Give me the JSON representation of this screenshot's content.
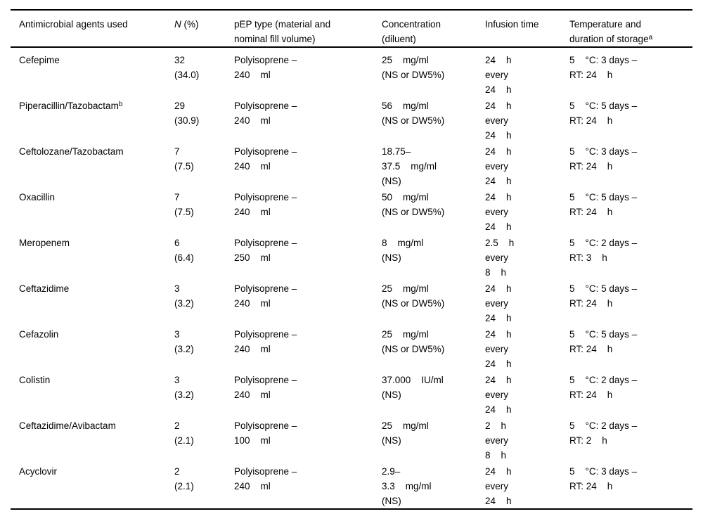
{
  "table": {
    "headers": {
      "agents": "Antimicrobial agents used",
      "n_italic": "N",
      "n_rest": " (%)",
      "pep": "pEP type (material and\nnominal fill volume)",
      "concentration": "Concentration\n(diluent)",
      "infusion": "Infusion time",
      "storage": "Temperature and\nduration of storage",
      "storage_sup": "a"
    },
    "rows": [
      {
        "agent": "Cefepime",
        "agent_sup": "",
        "n": "32\n(34.0)",
        "pep": "Polyisoprene –\n240    ml",
        "conc": "25    mg/ml\n(NS or DW5%)",
        "infusion": "24    h\nevery\n24    h",
        "storage": "5    °C: 3 days –\nRT: 24    h"
      },
      {
        "agent": "Piperacillin/Tazobactam",
        "agent_sup": "b",
        "n": "29\n(30.9)",
        "pep": "Polyisoprene –\n240    ml",
        "conc": "56    mg/ml\n(NS or DW5%)",
        "infusion": "24    h\nevery\n24    h",
        "storage": "5    °C: 5 days –\nRT: 24    h"
      },
      {
        "agent": "Ceftolozane/Tazobactam",
        "agent_sup": "",
        "n": "7\n(7.5)",
        "pep": "Polyisoprene –\n240    ml",
        "conc": "18.75–\n37.5    mg/ml\n(NS)",
        "infusion": "24    h\nevery\n24    h",
        "storage": "5    °C: 3 days –\nRT: 24    h"
      },
      {
        "agent": "Oxacillin",
        "agent_sup": "",
        "n": "7\n(7.5)",
        "pep": "Polyisoprene –\n240    ml",
        "conc": "50    mg/ml\n(NS or DW5%)",
        "infusion": "24    h\nevery\n24    h",
        "storage": "5    °C: 5 days –\nRT: 24    h"
      },
      {
        "agent": "Meropenem",
        "agent_sup": "",
        "n": "6\n(6.4)",
        "pep": "Polyisoprene –\n250    ml",
        "conc": "8    mg/ml\n(NS)",
        "infusion": "2.5    h\nevery\n8    h",
        "storage": "5    °C: 2 days –\nRT: 3    h"
      },
      {
        "agent": "Ceftazidime",
        "agent_sup": "",
        "n": "3\n(3.2)",
        "pep": "Polyisoprene –\n240    ml",
        "conc": "25    mg/ml\n(NS or DW5%)",
        "infusion": "24    h\nevery\n24    h",
        "storage": "5    °C: 5 days –\nRT: 24    h"
      },
      {
        "agent": "Cefazolin",
        "agent_sup": "",
        "n": "3\n(3.2)",
        "pep": "Polyisoprene –\n240    ml",
        "conc": "25    mg/ml\n(NS or DW5%)",
        "infusion": "24    h\nevery\n24    h",
        "storage": "5    °C: 5 days –\nRT: 24    h"
      },
      {
        "agent": "Colistin",
        "agent_sup": "",
        "n": "3\n(3.2)",
        "pep": "Polyisoprene –\n240    ml",
        "conc": "37.000    IU/ml\n(NS)",
        "infusion": "24    h\nevery\n24    h",
        "storage": "5    °C: 2 days –\nRT: 24    h"
      },
      {
        "agent": "Ceftazidime/Avibactam",
        "agent_sup": "",
        "n": "2\n(2.1)",
        "pep": "Polyisoprene –\n100    ml",
        "conc": "25    mg/ml\n(NS)",
        "infusion": "2    h\nevery\n8    h",
        "storage": "5    °C: 2 days –\nRT: 2    h"
      },
      {
        "agent": "Acyclovir",
        "agent_sup": "",
        "n": "2\n(2.1)",
        "pep": "Polyisoprene –\n240    ml",
        "conc": "2.9–\n3.3    mg/ml\n(NS)",
        "infusion": "24    h\nevery\n24    h",
        "storage": "5    °C: 3 days –\nRT: 24    h"
      }
    ]
  }
}
